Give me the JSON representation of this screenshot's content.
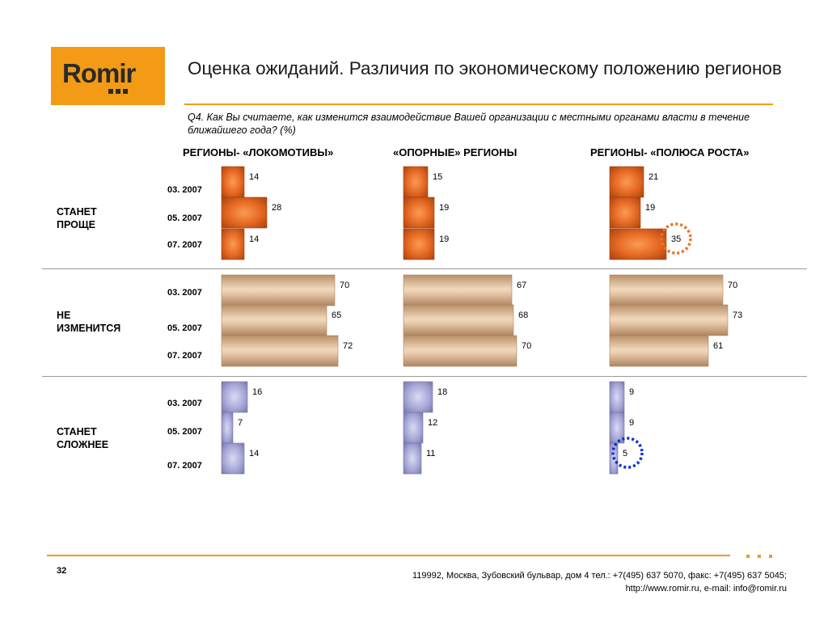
{
  "logo": {
    "text": "Romir"
  },
  "title": "Оценка ожиданий. Различия по экономическому положению регионов",
  "question": "Q4. Как Вы считаете, как изменится взаимодействие Вашей организации с местными органами власти в течение ближайшего года? (%)",
  "footer": {
    "page_number": "32",
    "address": "119992, Москва, Зубовский бульвар, дом 4   тел.: +7(495) 637 5070, факс: +7(495) 637 5045;",
    "contacts": "http://www.romir.ru, e-mail: info@romir.ru"
  },
  "colors": {
    "accent": "#f39a17",
    "easier": "#e0601a",
    "unchanged": "#d2ad88",
    "harder": "#a2a2d2",
    "highlight_orange": "#f07020",
    "highlight_blue": "#1030d0"
  },
  "chart_data": {
    "type": "bar",
    "orientation": "horizontal",
    "groups": [
      "РЕГИОНЫ- «ЛОКОМОТИВЫ»",
      "«ОПОРНЫЕ» РЕГИОНЫ",
      "РЕГИОНЫ- «ПОЛЮСА РОСТА»"
    ],
    "categories": [
      "СТАНЕТ ПРОЩЕ",
      "НЕ ИЗМЕНИТСЯ",
      "СТАНЕТ СЛОЖНЕЕ"
    ],
    "periods": [
      "03. 2007",
      "05. 2007",
      "07. 2007"
    ],
    "values": [
      [
        [
          14,
          28,
          14
        ],
        [
          15,
          19,
          19
        ],
        [
          21,
          19,
          35
        ]
      ],
      [
        [
          70,
          65,
          72
        ],
        [
          67,
          68,
          70
        ],
        [
          70,
          73,
          61
        ]
      ],
      [
        [
          16,
          7,
          14
        ],
        [
          18,
          12,
          11
        ],
        [
          9,
          9,
          5
        ]
      ]
    ],
    "highlighted": [
      {
        "category": "СТАНЕТ ПРОЩЕ",
        "group": "РЕГИОНЫ- «ПОЛЮСА РОСТА»",
        "period": "07. 2007",
        "value": 35
      },
      {
        "category": "СТАНЕТ СЛОЖНЕЕ",
        "group": "РЕГИОНЫ- «ПОЛЮСА РОСТА»",
        "period": "07. 2007",
        "value": 5
      }
    ]
  }
}
